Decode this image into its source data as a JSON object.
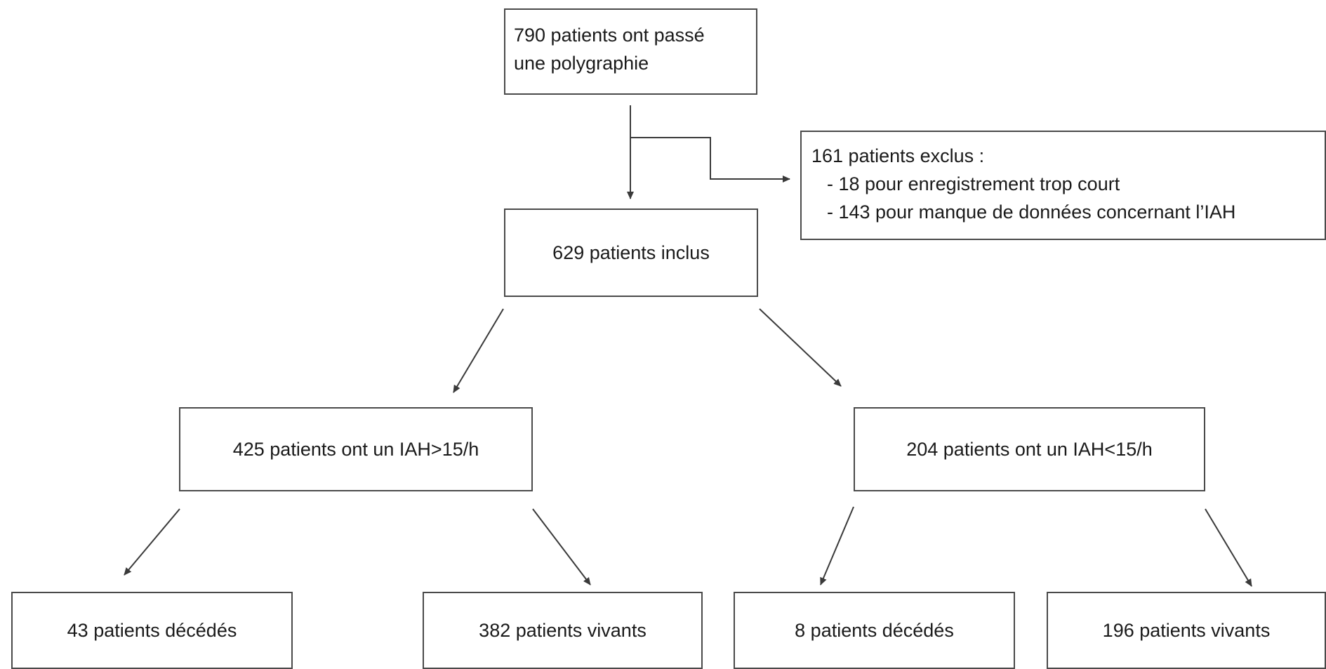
{
  "nodes": {
    "root": {
      "line1": "790 patients ont passé",
      "line2": "une polygraphie"
    },
    "excluded": {
      "line1": "161 patients exclus :",
      "line2": "- 18 pour enregistrement trop court",
      "line3": "- 143 pour manque de données concernant l’IAH"
    },
    "included": "629 patients inclus",
    "iah_high": "425 patients ont un IAH>15/h",
    "iah_low": "204 patients ont un IAH<15/h",
    "high_deceased": "43 patients décédés",
    "high_alive": "382 patients vivants",
    "low_deceased": "8 patients décédés",
    "low_alive": "196 patients vivants"
  },
  "colors": {
    "border": "#4a4a4a",
    "arrow": "#3a3a3a",
    "text": "#1a1a1a",
    "background": "#ffffff"
  }
}
